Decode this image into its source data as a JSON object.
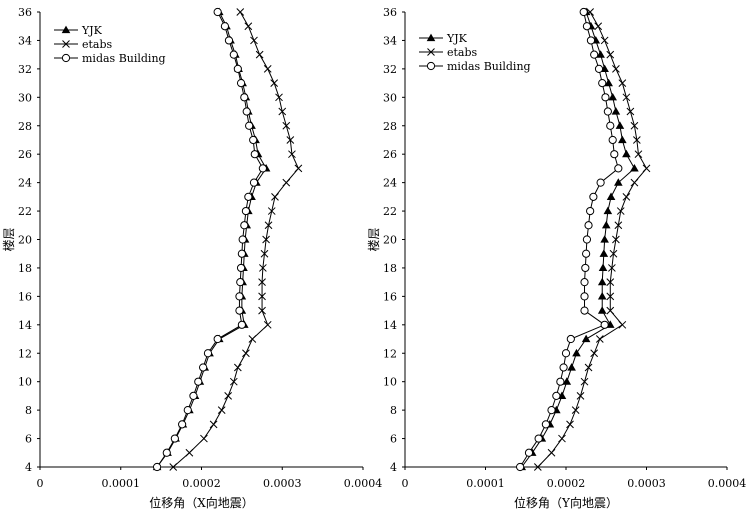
{
  "chart_data": [
    {
      "type": "line",
      "xlabel": "位移角（X向地震）",
      "ylabel": "楼层",
      "xlim": [
        0,
        0.0004
      ],
      "ylim": [
        4,
        36
      ],
      "xticks": [
        "0",
        "0.0001",
        "0.0002",
        "0.0003",
        "0.0004"
      ],
      "yticks": [
        "4",
        "6",
        "8",
        "10",
        "12",
        "14",
        "16",
        "18",
        "20",
        "22",
        "24",
        "26",
        "28",
        "30",
        "32",
        "34",
        "36"
      ],
      "grid": false,
      "legend_position": "top-left",
      "series": [
        {
          "name": "YJK",
          "marker": "triangle",
          "points": [
            [
              0.000145,
              4
            ],
            [
              0.000158,
              5
            ],
            [
              0.000168,
              6
            ],
            [
              0.000177,
              7
            ],
            [
              0.000185,
              8
            ],
            [
              0.000192,
              9
            ],
            [
              0.000198,
              10
            ],
            [
              0.000204,
              11
            ],
            [
              0.00021,
              12
            ],
            [
              0.000222,
              13
            ],
            [
              0.000253,
              14
            ],
            [
              0.00025,
              15
            ],
            [
              0.00025,
              16
            ],
            [
              0.000251,
              17
            ],
            [
              0.000252,
              18
            ],
            [
              0.000253,
              19
            ],
            [
              0.000254,
              20
            ],
            [
              0.000256,
              21
            ],
            [
              0.000258,
              22
            ],
            [
              0.000262,
              23
            ],
            [
              0.000268,
              24
            ],
            [
              0.00028,
              25
            ],
            [
              0.00027,
              26
            ],
            [
              0.000267,
              27
            ],
            [
              0.000262,
              28
            ],
            [
              0.000258,
              29
            ],
            [
              0.000255,
              30
            ],
            [
              0.000251,
              31
            ],
            [
              0.000246,
              32
            ],
            [
              0.000242,
              33
            ],
            [
              0.000236,
              34
            ],
            [
              0.000231,
              35
            ],
            [
              0.000222,
              36
            ]
          ]
        },
        {
          "name": "etabs",
          "marker": "x",
          "points": [
            [
              0.000165,
              4
            ],
            [
              0.000185,
              5
            ],
            [
              0.000203,
              6
            ],
            [
              0.000215,
              7
            ],
            [
              0.000225,
              8
            ],
            [
              0.000233,
              9
            ],
            [
              0.00024,
              10
            ],
            [
              0.000245,
              11
            ],
            [
              0.000255,
              12
            ],
            [
              0.000263,
              13
            ],
            [
              0.000282,
              14
            ],
            [
              0.000275,
              15
            ],
            [
              0.000275,
              16
            ],
            [
              0.000275,
              17
            ],
            [
              0.000276,
              18
            ],
            [
              0.000278,
              19
            ],
            [
              0.00028,
              20
            ],
            [
              0.000283,
              21
            ],
            [
              0.000287,
              22
            ],
            [
              0.000291,
              23
            ],
            [
              0.000305,
              24
            ],
            [
              0.00032,
              25
            ],
            [
              0.000312,
              26
            ],
            [
              0.00031,
              27
            ],
            [
              0.000305,
              28
            ],
            [
              0.0003,
              29
            ],
            [
              0.000296,
              30
            ],
            [
              0.00029,
              31
            ],
            [
              0.000282,
              32
            ],
            [
              0.000272,
              33
            ],
            [
              0.000265,
              34
            ],
            [
              0.000258,
              35
            ],
            [
              0.000248,
              36
            ]
          ]
        },
        {
          "name": "midas Building",
          "marker": "circle",
          "points": [
            [
              0.000145,
              4
            ],
            [
              0.000157,
              5
            ],
            [
              0.000167,
              6
            ],
            [
              0.000176,
              7
            ],
            [
              0.000183,
              8
            ],
            [
              0.00019,
              9
            ],
            [
              0.000196,
              10
            ],
            [
              0.000202,
              11
            ],
            [
              0.000208,
              12
            ],
            [
              0.00022,
              13
            ],
            [
              0.00025,
              14
            ],
            [
              0.000247,
              15
            ],
            [
              0.000247,
              16
            ],
            [
              0.000248,
              17
            ],
            [
              0.000249,
              18
            ],
            [
              0.00025,
              19
            ],
            [
              0.000251,
              20
            ],
            [
              0.000253,
              21
            ],
            [
              0.000255,
              22
            ],
            [
              0.000258,
              23
            ],
            [
              0.000265,
              24
            ],
            [
              0.000276,
              25
            ],
            [
              0.000266,
              26
            ],
            [
              0.000264,
              27
            ],
            [
              0.000259,
              28
            ],
            [
              0.000256,
              29
            ],
            [
              0.000253,
              30
            ],
            [
              0.000249,
              31
            ],
            [
              0.000245,
              32
            ],
            [
              0.00024,
              33
            ],
            [
              0.000234,
              34
            ],
            [
              0.000229,
              35
            ],
            [
              0.00022,
              36
            ]
          ]
        }
      ]
    },
    {
      "type": "line",
      "xlabel": "位移角（Y向地震）",
      "ylabel": "楼层",
      "xlim": [
        0,
        0.0004
      ],
      "ylim": [
        4,
        36
      ],
      "xticks": [
        "0",
        "0.0001",
        "0.0002",
        "0.0003",
        "0.0004"
      ],
      "yticks": [
        "4",
        "6",
        "8",
        "10",
        "12",
        "14",
        "16",
        "18",
        "20",
        "22",
        "24",
        "26",
        "28",
        "30",
        "32",
        "34",
        "36"
      ],
      "grid": false,
      "legend_position": "top-left",
      "series": [
        {
          "name": "YJK",
          "marker": "triangle",
          "points": [
            [
              0.000145,
              4
            ],
            [
              0.000158,
              5
            ],
            [
              0.00017,
              6
            ],
            [
              0.00018,
              7
            ],
            [
              0.000188,
              8
            ],
            [
              0.000195,
              9
            ],
            [
              0.000201,
              10
            ],
            [
              0.000207,
              11
            ],
            [
              0.000213,
              12
            ],
            [
              0.000225,
              13
            ],
            [
              0.000255,
              14
            ],
            [
              0.000245,
              15
            ],
            [
              0.000245,
              16
            ],
            [
              0.000245,
              17
            ],
            [
              0.000246,
              18
            ],
            [
              0.000247,
              19
            ],
            [
              0.000248,
              20
            ],
            [
              0.00025,
              21
            ],
            [
              0.000252,
              22
            ],
            [
              0.000256,
              23
            ],
            [
              0.000265,
              24
            ],
            [
              0.000285,
              25
            ],
            [
              0.000275,
              26
            ],
            [
              0.00027,
              27
            ],
            [
              0.000267,
              28
            ],
            [
              0.000262,
              29
            ],
            [
              0.000258,
              30
            ],
            [
              0.000253,
              31
            ],
            [
              0.000248,
              32
            ],
            [
              0.000243,
              33
            ],
            [
              0.000237,
              34
            ],
            [
              0.000231,
              35
            ],
            [
              0.000225,
              36
            ]
          ]
        },
        {
          "name": "etabs",
          "marker": "x",
          "points": [
            [
              0.000165,
              4
            ],
            [
              0.000182,
              5
            ],
            [
              0.000195,
              6
            ],
            [
              0.000205,
              7
            ],
            [
              0.000212,
              8
            ],
            [
              0.000218,
              9
            ],
            [
              0.000223,
              10
            ],
            [
              0.000228,
              11
            ],
            [
              0.000235,
              12
            ],
            [
              0.000242,
              13
            ],
            [
              0.00027,
              14
            ],
            [
              0.000255,
              15
            ],
            [
              0.000255,
              16
            ],
            [
              0.000255,
              17
            ],
            [
              0.000257,
              18
            ],
            [
              0.000259,
              19
            ],
            [
              0.000262,
              20
            ],
            [
              0.000265,
              21
            ],
            [
              0.000268,
              22
            ],
            [
              0.000275,
              23
            ],
            [
              0.000285,
              24
            ],
            [
              0.0003,
              25
            ],
            [
              0.00029,
              26
            ],
            [
              0.000288,
              27
            ],
            [
              0.000285,
              28
            ],
            [
              0.00028,
              29
            ],
            [
              0.000275,
              30
            ],
            [
              0.00027,
              31
            ],
            [
              0.000262,
              32
            ],
            [
              0.000255,
              33
            ],
            [
              0.000248,
              34
            ],
            [
              0.00024,
              35
            ],
            [
              0.00023,
              36
            ]
          ]
        },
        {
          "name": "midas Building",
          "marker": "circle",
          "points": [
            [
              0.000143,
              4
            ],
            [
              0.000154,
              5
            ],
            [
              0.000166,
              6
            ],
            [
              0.000175,
              7
            ],
            [
              0.000182,
              8
            ],
            [
              0.000188,
              9
            ],
            [
              0.000193,
              10
            ],
            [
              0.000197,
              11
            ],
            [
              0.0002,
              12
            ],
            [
              0.000206,
              13
            ],
            [
              0.000248,
              14
            ],
            [
              0.000223,
              15
            ],
            [
              0.000223,
              16
            ],
            [
              0.000223,
              17
            ],
            [
              0.000224,
              18
            ],
            [
              0.000225,
              19
            ],
            [
              0.000226,
              20
            ],
            [
              0.000228,
              21
            ],
            [
              0.00023,
              22
            ],
            [
              0.000234,
              23
            ],
            [
              0.000243,
              24
            ],
            [
              0.000265,
              25
            ],
            [
              0.00026,
              26
            ],
            [
              0.000258,
              27
            ],
            [
              0.000255,
              28
            ],
            [
              0.000252,
              29
            ],
            [
              0.000249,
              30
            ],
            [
              0.000245,
              31
            ],
            [
              0.000241,
              32
            ],
            [
              0.000235,
              33
            ],
            [
              0.000231,
              34
            ],
            [
              0.000226,
              35
            ],
            [
              0.000222,
              36
            ]
          ]
        }
      ]
    }
  ]
}
